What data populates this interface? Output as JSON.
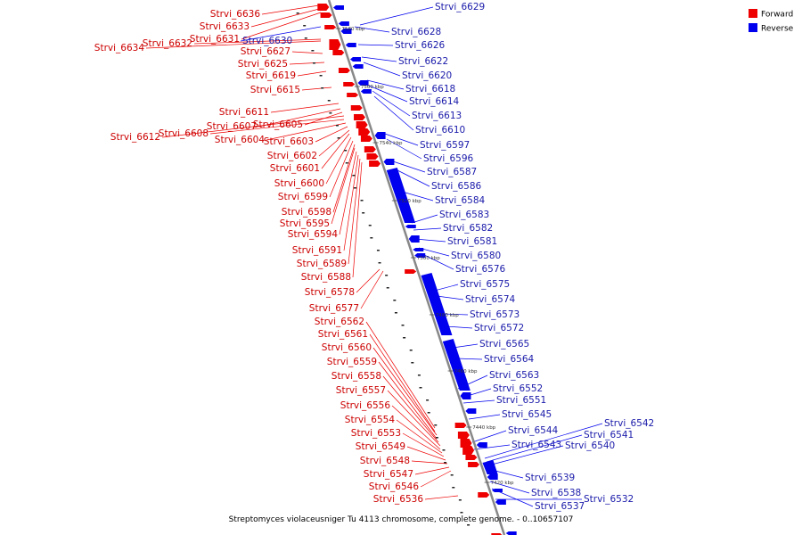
{
  "caption": "Streptomyces violaceusniger Tu 4113 chromosome, complete genome. - 0..10657107",
  "legend": [
    {
      "label": "Forward",
      "color": "#ee0000"
    },
    {
      "label": "Reverse",
      "color": "#0000ee"
    }
  ],
  "colors": {
    "forward": "#ee0000",
    "reverse": "#0000ee",
    "backbone": "#888888",
    "label_forward": "#cc0000",
    "label_reverse": "#1a1aaa"
  },
  "scale_ticks": [
    "7580 kbp",
    "7560 kbp",
    "7540 kbp",
    "7520 kbp",
    "7500 kbp",
    "7480 kbp",
    "7460 kbp",
    "7440 kbp",
    "7420 kbp"
  ],
  "forward_genes": [
    "Strvi_6636",
    "Strvi_6633",
    "Strvi_6631",
    "Strvi_6634",
    "Strvi_6632",
    "Strvi_6627",
    "Strvi_6625",
    "Strvi_6619",
    "Strvi_6615",
    "Strvi_6611",
    "Strvi_6607",
    "Strvi_6605",
    "Strvi_6612",
    "Strvi_6608",
    "Strvi_6604",
    "Strvi_6603",
    "Strvi_6602",
    "Strvi_6601",
    "Strvi_6600",
    "Strvi_6599",
    "Strvi_6598",
    "Strvi_6595",
    "Strvi_6594",
    "Strvi_6591",
    "Strvi_6589",
    "Strvi_6588",
    "Strvi_6578",
    "Strvi_6577",
    "Strvi_6562",
    "Strvi_6561",
    "Strvi_6560",
    "Strvi_6559",
    "Strvi_6558",
    "Strvi_6557",
    "Strvi_6556",
    "Strvi_6554",
    "Strvi_6553",
    "Strvi_6549",
    "Strvi_6548",
    "Strvi_6547",
    "Strvi_6546",
    "Strvi_6536"
  ],
  "reverse_genes": [
    "Strvi_6629",
    "Strvi_6630",
    "Strvi_6628",
    "Strvi_6626",
    "Strvi_6622",
    "Strvi_6620",
    "Strvi_6618",
    "Strvi_6614",
    "Strvi_6613",
    "Strvi_6610",
    "Strvi_6597",
    "Strvi_6596",
    "Strvi_6587",
    "Strvi_6586",
    "Strvi_6584",
    "Strvi_6583",
    "Strvi_6582",
    "Strvi_6581",
    "Strvi_6580",
    "Strvi_6576",
    "Strvi_6575",
    "Strvi_6574",
    "Strvi_6573",
    "Strvi_6572",
    "Strvi_6565",
    "Strvi_6564",
    "Strvi_6563",
    "Strvi_6552",
    "Strvi_6551",
    "Strvi_6545",
    "Strvi_6544",
    "Strvi_6543",
    "Strvi_6542",
    "Strvi_6541",
    "Strvi_6540",
    "Strvi_6539",
    "Strvi_6538",
    "Strvi_6537",
    "Strvi_6532"
  ]
}
